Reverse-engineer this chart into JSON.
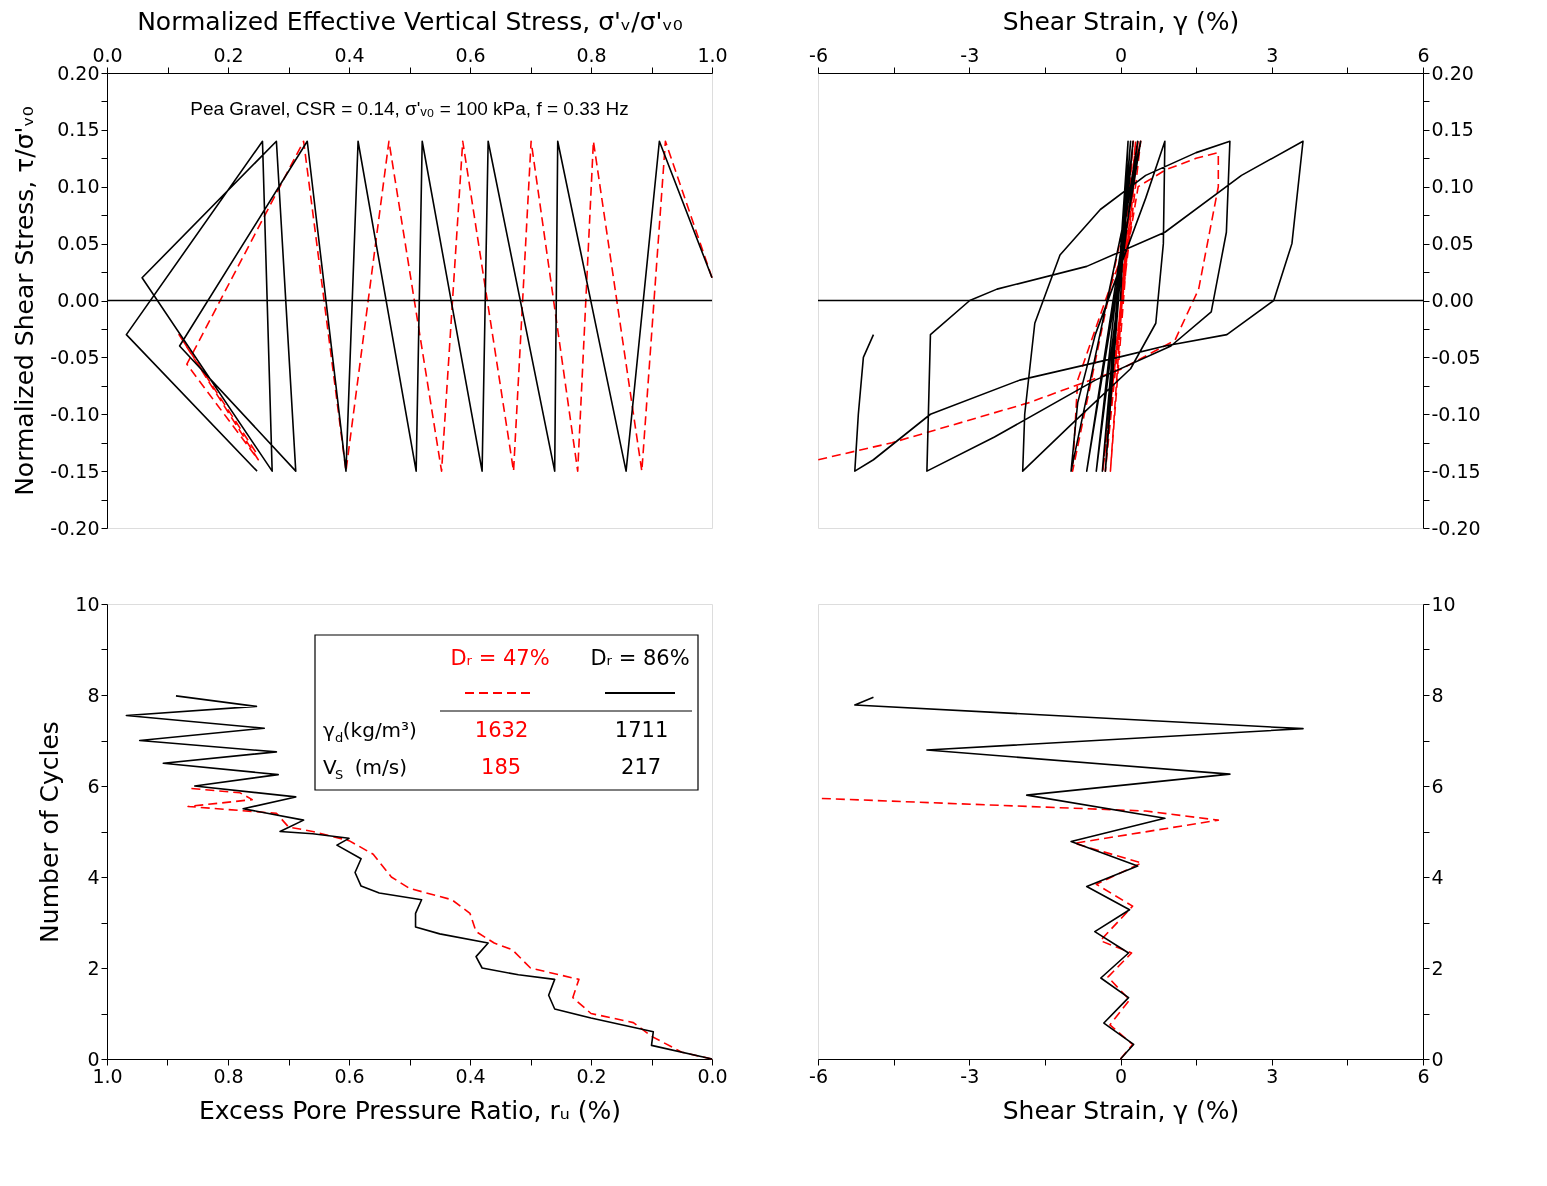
{
  "chart_data": [
    {
      "type": "line",
      "xlabel": "Normalized Effective Vertical Stress, σ'ᵥ/σ'ᵥ₀",
      "ylabel": "Normalized Shear Stress, τ/σ'ᵥ₀",
      "annotations": [
        "Pea Gravel, CSR = 0.14, σ'ᵥ₀ = 100 kPa, f = 0.33 Hz"
      ],
      "xlim": [
        0,
        1
      ],
      "ylim": [
        -0.2,
        0.2
      ],
      "xticks": [
        {
          "value": 0,
          "label": "0.0"
        },
        {
          "value": 0.1,
          "label": null
        },
        0.2,
        {
          "value": 0.3,
          "label": null
        },
        0.4,
        {
          "value": 0.5,
          "label": null
        },
        0.6,
        {
          "value": 0.7,
          "label": null
        },
        0.8,
        {
          "value": 0.9,
          "label": null
        },
        {
          "value": 1,
          "label": "1.0"
        }
      ],
      "yticks": [
        {
          "value": -0.2,
          "label": "-0.20"
        },
        {
          "value": -0.175,
          "label": null
        },
        -0.15,
        {
          "value": -0.125,
          "label": null
        },
        {
          "value": -0.1,
          "label": "-0.10"
        },
        {
          "value": -0.075,
          "label": null
        },
        -0.05,
        {
          "value": -0.025,
          "label": null
        },
        {
          "value": 0,
          "label": "0.00"
        },
        {
          "value": 0.025,
          "label": null
        },
        0.05,
        {
          "value": 0.075,
          "label": null
        },
        {
          "value": 0.1,
          "label": "0.10"
        },
        {
          "value": 0.125,
          "label": null
        },
        0.15,
        {
          "value": 0.175,
          "label": null
        },
        {
          "value": 0.2,
          "label": "0.20"
        }
      ],
      "ref_lines": [
        {
          "axis": "y",
          "value": 0,
          "color": "#000000"
        }
      ],
      "series": [
        {
          "color": "#ff0000",
          "line_style": "dashed",
          "x": [
            1.0,
            0.923,
            0.884,
            0.804,
            0.778,
            0.701,
            0.672,
            0.588,
            0.553,
            0.466,
            0.395,
            0.325,
            0.132,
            0.25,
            0.119,
            0.248
          ],
          "values": [
            0.02,
            0.14,
            -0.15,
            0.14,
            -0.15,
            0.14,
            -0.15,
            0.14,
            -0.15,
            0.14,
            -0.15,
            0.14,
            -0.056,
            -0.14,
            -0.03,
            -0.135
          ]
        },
        {
          "color": "#000000",
          "line_style": "solid",
          "x": [
            1.0,
            0.913,
            0.858,
            0.745,
            0.74,
            0.63,
            0.62,
            0.521,
            0.511,
            0.415,
            0.395,
            0.331,
            0.12,
            0.312,
            0.28,
            0.058,
            0.273,
            0.257,
            0.032,
            0.248
          ],
          "values": [
            0.02,
            0.14,
            -0.15,
            0.14,
            -0.15,
            0.14,
            -0.15,
            0.14,
            -0.15,
            0.14,
            -0.15,
            0.14,
            -0.04,
            -0.15,
            0.14,
            0.02,
            -0.15,
            0.14,
            -0.03,
            -0.15
          ]
        }
      ]
    },
    {
      "type": "line",
      "xlabel": "Shear Strain, γ (%)",
      "xlim": [
        -6,
        6
      ],
      "ylim": [
        -0.2,
        0.2
      ],
      "xticks": [
        -6,
        {
          "value": -4.5,
          "label": null
        },
        -3,
        {
          "value": -1.5,
          "label": null
        },
        0,
        {
          "value": 1.5,
          "label": null
        },
        3,
        {
          "value": 4.5,
          "label": null
        },
        6
      ],
      "yticks": [
        {
          "value": -0.2,
          "label": "-0.20"
        },
        {
          "value": -0.175,
          "label": null
        },
        -0.15,
        {
          "value": -0.125,
          "label": null
        },
        {
          "value": -0.1,
          "label": "-0.10"
        },
        {
          "value": -0.075,
          "label": null
        },
        -0.05,
        {
          "value": -0.025,
          "label": null
        },
        {
          "value": 0,
          "label": "0.00"
        },
        {
          "value": 0.025,
          "label": null
        },
        0.05,
        {
          "value": 0.075,
          "label": null
        },
        {
          "value": 0.1,
          "label": "0.10"
        },
        {
          "value": 0.125,
          "label": null
        },
        0.15,
        {
          "value": 0.175,
          "label": null
        },
        {
          "value": 0.2,
          "label": "0.20"
        }
      ],
      "ref_lines": [
        {
          "axis": "y",
          "value": 0,
          "color": "#000000"
        }
      ],
      "series": [
        {
          "color": "#ff0000",
          "line_style": "dashed",
          "x": [
            0,
            0.25,
            -0.2,
            0.3,
            -0.3,
            0.35,
            -0.35,
            0.4,
            -0.95,
            -0.85,
            -0.3,
            0.2,
            0.35,
            0.9,
            1.5,
            1.94,
            1.94,
            1.55,
            1.08,
            0.03,
            -1.83,
            -4.53,
            -6.0
          ],
          "values": [
            0,
            0.14,
            -0.15,
            0.14,
            -0.15,
            0.14,
            -0.15,
            0.14,
            -0.15,
            -0.07,
            0.0,
            0.06,
            0.1,
            0.115,
            0.125,
            0.13,
            0.1,
            0.01,
            -0.035,
            -0.06,
            -0.09,
            -0.125,
            -0.14
          ]
        },
        {
          "color": "#000000",
          "line_style": "solid",
          "x": [
            0,
            0.15,
            -0.3,
            0.2,
            -0.36,
            0.25,
            -0.48,
            0.34,
            -0.67,
            0.4,
            -0.98,
            -0.85,
            -0.5,
            0.0,
            0.5,
            0.88,
            0.85,
            0.7,
            0.2,
            -1.0,
            -1.94,
            -1.9,
            -1.7,
            -1.2,
            -0.4,
            0.5,
            1.5,
            2.17,
            2.1,
            1.8,
            1.0,
            -0.5,
            -2.5,
            -3.84,
            -3.77,
            -2.99,
            -2.45,
            -0.67,
            0.88,
            2.4,
            3.62,
            3.4,
            3.04,
            2.11,
            0.88,
            -0.05,
            -2.0,
            -3.77,
            -4.9,
            -5.27,
            -5.2,
            -5.1,
            -4.9
          ],
          "values": [
            0,
            0.14,
            -0.15,
            0.14,
            -0.15,
            0.14,
            -0.15,
            0.14,
            -0.15,
            0.14,
            -0.15,
            -0.09,
            -0.03,
            0.03,
            0.09,
            0.14,
            0.05,
            -0.02,
            -0.06,
            -0.11,
            -0.15,
            -0.1,
            -0.02,
            0.04,
            0.08,
            0.11,
            0.13,
            0.14,
            0.06,
            -0.01,
            -0.04,
            -0.07,
            -0.12,
            -0.15,
            -0.03,
            0.0,
            0.01,
            0.03,
            0.06,
            0.11,
            0.14,
            0.05,
            0.0,
            -0.03,
            -0.04,
            -0.05,
            -0.07,
            -0.1,
            -0.14,
            -0.15,
            -0.1,
            -0.05,
            -0.03
          ]
        }
      ]
    },
    {
      "type": "line",
      "xlabel": "Excess Pore Pressure Ratio, rᵤ (%)",
      "ylabel": "Number of Cycles",
      "legend": "top right",
      "annotations": [
        "γ$_{d}$(kg/m³)",
        "1632",
        "1711",
        "V$_{S}$ (m/s)",
        "185",
        "217"
      ],
      "xlim": [
        1,
        0
      ],
      "ylim": [
        0,
        10
      ],
      "xticks": [
        {
          "value": 1,
          "label": "1.0"
        },
        {
          "value": 0.9,
          "label": null
        },
        0.8,
        {
          "value": 0.7,
          "label": null
        },
        0.6,
        {
          "value": 0.5,
          "label": null
        },
        0.4,
        {
          "value": 0.3,
          "label": null
        },
        0.2,
        {
          "value": 0.1,
          "label": null
        },
        {
          "value": 0,
          "label": "0.0"
        }
      ],
      "yticks": [
        0,
        {
          "value": 1,
          "label": null
        },
        2,
        {
          "value": 3,
          "label": null
        },
        4,
        {
          "value": 5,
          "label": null
        },
        6,
        {
          "value": 7,
          "label": null
        },
        8,
        {
          "value": 9,
          "label": null
        },
        10
      ],
      "series": [
        {
          "name": "Dᵣ = 47%",
          "color": "#ff0000",
          "line_style": "dashed",
          "x": [
            0.0,
            0.05,
            0.1,
            0.13,
            0.2,
            0.23,
            0.22,
            0.3,
            0.33,
            0.36,
            0.39,
            0.4,
            0.43,
            0.5,
            0.53,
            0.56,
            0.6,
            0.66,
            0.7,
            0.72,
            0.866,
            0.76,
            0.78,
            0.865
          ],
          "values": [
            0.0,
            0.15,
            0.5,
            0.8,
            1.0,
            1.35,
            1.75,
            2.0,
            2.4,
            2.55,
            2.8,
            3.2,
            3.5,
            3.75,
            4.0,
            4.5,
            4.8,
            5.0,
            5.1,
            5.4,
            5.55,
            5.7,
            5.85,
            5.95
          ]
        },
        {
          "name": "Dᵣ = 86%",
          "color": "#000000",
          "line_style": "solid",
          "x": [
            0.0,
            0.1,
            0.097,
            0.2,
            0.26,
            0.27,
            0.26,
            0.32,
            0.38,
            0.39,
            0.37,
            0.45,
            0.49,
            0.49,
            0.48,
            0.55,
            0.58,
            0.59,
            0.58,
            0.62,
            0.6,
            0.66,
            0.714,
            0.675,
            0.775,
            0.688,
            0.855,
            0.717,
            0.907,
            0.72,
            0.946,
            0.74,
            0.968,
            0.753,
            0.886
          ],
          "values": [
            0.0,
            0.3,
            0.6,
            0.9,
            1.1,
            1.4,
            1.75,
            1.85,
            2.0,
            2.25,
            2.55,
            2.75,
            2.9,
            3.2,
            3.5,
            3.65,
            3.8,
            4.1,
            4.4,
            4.7,
            4.85,
            4.95,
            5.0,
            5.25,
            5.5,
            5.76,
            6.0,
            6.25,
            6.5,
            6.75,
            7.0,
            7.27,
            7.55,
            7.75,
            7.98
          ]
        }
      ]
    },
    {
      "type": "line",
      "xlabel": "Shear Strain, γ (%)",
      "xlim": [
        -6,
        6
      ],
      "ylim": [
        0,
        10
      ],
      "xticks": [
        -6,
        {
          "value": -4.5,
          "label": null
        },
        -3,
        {
          "value": -1.5,
          "label": null
        },
        0,
        {
          "value": 1.5,
          "label": null
        },
        3,
        {
          "value": 4.5,
          "label": null
        },
        6
      ],
      "yticks": [
        0,
        {
          "value": 1,
          "label": null
        },
        2,
        {
          "value": 3,
          "label": null
        },
        4,
        {
          "value": 5,
          "label": null
        },
        6,
        {
          "value": 7,
          "label": null
        },
        8,
        {
          "value": 9,
          "label": null
        },
        10
      ],
      "series": [
        {
          "color": "#ff0000",
          "line_style": "dashed",
          "x": [
            0.0,
            0.24,
            -0.21,
            0.18,
            -0.25,
            0.22,
            -0.4,
            0.24,
            -0.48,
            0.42,
            -0.92,
            1.94,
            0.5,
            -6.0
          ],
          "values": [
            0.0,
            0.32,
            0.75,
            1.3,
            1.8,
            2.33,
            2.6,
            3.36,
            3.84,
            4.31,
            4.74,
            5.25,
            5.45,
            5.73
          ]
        },
        {
          "color": "#000000",
          "line_style": "solid",
          "x": [
            0.0,
            0.26,
            -0.33,
            0.16,
            -0.39,
            0.16,
            -0.51,
            0.18,
            -0.67,
            0.34,
            -0.98,
            0.88,
            -1.86,
            2.17,
            -3.84,
            3.62,
            -5.27,
            -4.9
          ],
          "values": [
            0.0,
            0.32,
            0.79,
            1.35,
            1.78,
            2.33,
            2.8,
            3.28,
            3.79,
            4.24,
            4.78,
            5.29,
            5.8,
            6.26,
            6.79,
            7.26,
            7.78,
            7.95
          ]
        }
      ]
    }
  ]
}
